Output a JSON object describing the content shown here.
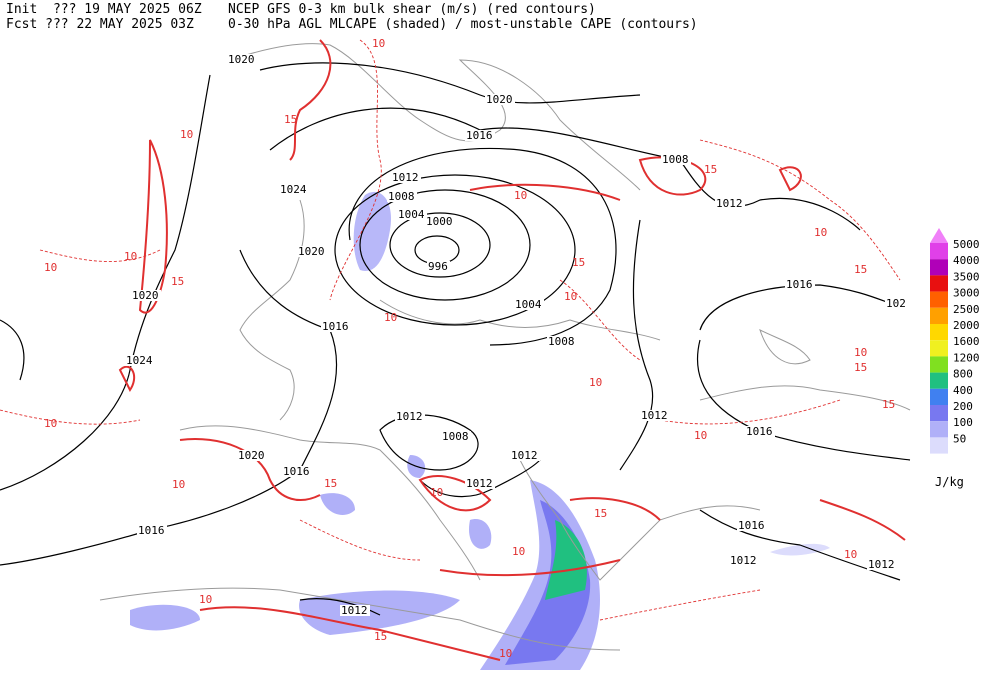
{
  "header": {
    "line1": [
      "Init  ??? 19 MAY 2025 06Z",
      "NCEP GFS 0-3 km bulk shear (m/s) (red contours)"
    ],
    "line2": [
      "Fcst ??? 22 MAY 2025 03Z",
      "0-30 hPa AGL MLCAPE (shaded) / most-unstable CAPE (contours)"
    ]
  },
  "legend": {
    "labels": [
      5000,
      4000,
      3500,
      3000,
      2500,
      2000,
      1600,
      1200,
      800,
      400,
      200,
      100,
      50
    ],
    "colors": [
      "#e040e8",
      "#b000b8",
      "#e81010",
      "#ff6000",
      "#ffa000",
      "#ffd800",
      "#f0f020",
      "#80e020",
      "#20c080",
      "#4080f0",
      "#7878f0",
      "#b0b0f8",
      "#dcdcfc"
    ],
    "top_color": "#f080f8",
    "unit": "J/kg"
  },
  "map": {
    "pressure_labels": [
      1020,
      1020,
      1016,
      1008,
      1012,
      1008,
      1004,
      1000,
      1012,
      1024,
      1020,
      996,
      1016,
      102,
      1020,
      1004,
      1016,
      1008,
      1024,
      1012,
      1012,
      1008,
      1016,
      1020,
      1012,
      1016,
      1012,
      1016,
      1016,
      1012,
      1012,
      1012
    ],
    "shear_labels": [
      10,
      15,
      10,
      15,
      10,
      15,
      10,
      10,
      15,
      10,
      15,
      10,
      10,
      10,
      15,
      15,
      10,
      10,
      10,
      15,
      10,
      10,
      10,
      15,
      10,
      15,
      10,
      10
    ]
  }
}
